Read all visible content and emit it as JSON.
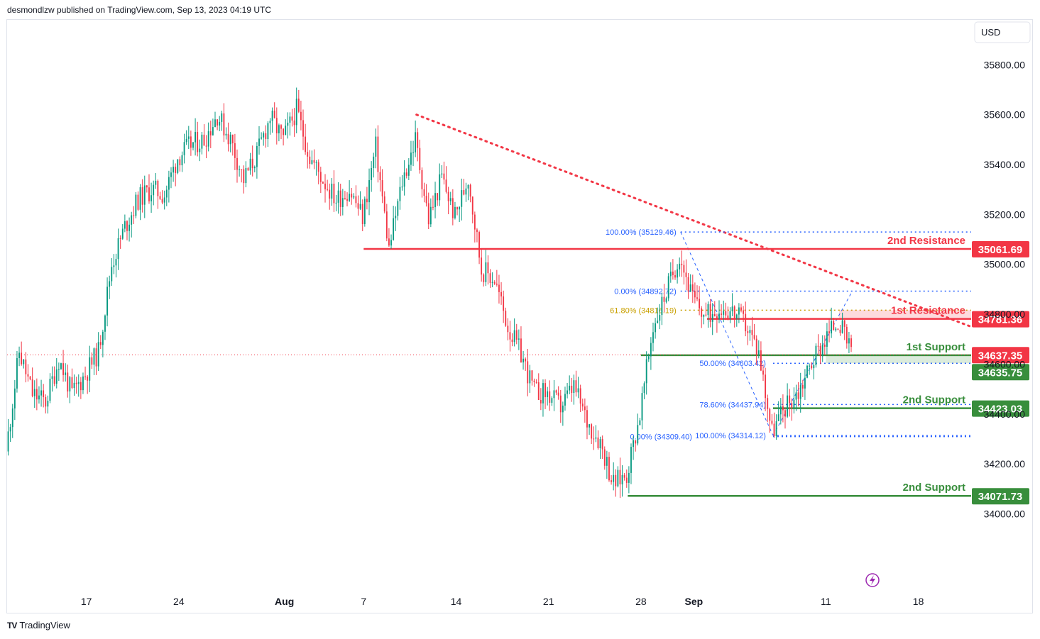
{
  "header": {
    "publisher": "desmondlzw published on TradingView.com, Sep 13, 2023 04:19 UTC"
  },
  "footer": {
    "brand": "TradingView",
    "logo_text": "TV"
  },
  "colors": {
    "up": "#089981",
    "down": "#f23645",
    "resistance": "#f23645",
    "support": "#388e3c",
    "fib": "#2962ff",
    "fib_gold": "#c9a000",
    "trend": "#f23645"
  },
  "icons": {
    "flash": "lightning-bolt-icon",
    "logo": "tradingview-logo-icon"
  },
  "chart_data": {
    "type": "candlestick",
    "currency": "USD",
    "y_range": [
      33700,
      35980
    ],
    "y_ticks": [
      "35800.00",
      "35600.00",
      "35400.00",
      "35200.00",
      "35000.00",
      "34800.00",
      "34600.00",
      "34400.00",
      "34200.00",
      "34000.00"
    ],
    "x_range": [
      "2023-07-11",
      "2023-09-22"
    ],
    "x_ticks": [
      {
        "label": "17",
        "date": "2023-07-17",
        "bold": false
      },
      {
        "label": "24",
        "date": "2023-07-24",
        "bold": false
      },
      {
        "label": "Aug",
        "date": "2023-08-01",
        "bold": true
      },
      {
        "label": "7",
        "date": "2023-08-07",
        "bold": false
      },
      {
        "label": "14",
        "date": "2023-08-14",
        "bold": false
      },
      {
        "label": "21",
        "date": "2023-08-21",
        "bold": false
      },
      {
        "label": "28",
        "date": "2023-08-28",
        "bold": false
      },
      {
        "label": "Sep",
        "date": "2023-09-01",
        "bold": true
      },
      {
        "label": "11",
        "date": "2023-09-11",
        "bold": false
      },
      {
        "label": "18",
        "date": "2023-09-18",
        "bold": false
      }
    ],
    "key_points": [
      [
        "2023-07-11",
        34250
      ],
      [
        "2023-07-12",
        34650
      ],
      [
        "2023-07-13",
        34480
      ],
      [
        "2023-07-14",
        34450
      ],
      [
        "2023-07-15",
        34620
      ],
      [
        "2023-07-16",
        34480
      ],
      [
        "2023-07-17",
        34560
      ],
      [
        "2023-07-18",
        34650
      ],
      [
        "2023-07-19",
        35000
      ],
      [
        "2023-07-20",
        35150
      ],
      [
        "2023-07-21",
        35260
      ],
      [
        "2023-07-22",
        35300
      ],
      [
        "2023-07-23",
        35280
      ],
      [
        "2023-07-24",
        35430
      ],
      [
        "2023-07-25",
        35480
      ],
      [
        "2023-07-26",
        35500
      ],
      [
        "2023-07-27",
        35600
      ],
      [
        "2023-07-28",
        35500
      ],
      [
        "2023-07-29",
        35340
      ],
      [
        "2023-07-30",
        35440
      ],
      [
        "2023-07-31",
        35590
      ],
      [
        "2023-08-01",
        35500
      ],
      [
        "2023-08-02",
        35620
      ],
      [
        "2023-08-03",
        35430
      ],
      [
        "2023-08-04",
        35340
      ],
      [
        "2023-08-05",
        35260
      ],
      [
        "2023-08-06",
        35300
      ],
      [
        "2023-08-07",
        35190
      ],
      [
        "2023-08-08",
        35470
      ],
      [
        "2023-08-09",
        35060
      ],
      [
        "2023-08-10",
        35330
      ],
      [
        "2023-08-11",
        35500
      ],
      [
        "2023-08-12",
        35180
      ],
      [
        "2023-08-13",
        35350
      ],
      [
        "2023-08-14",
        35190
      ],
      [
        "2023-08-15",
        35350
      ],
      [
        "2023-08-16",
        34980
      ],
      [
        "2023-08-17",
        34940
      ],
      [
        "2023-08-18",
        34750
      ],
      [
        "2023-08-19",
        34640
      ],
      [
        "2023-08-20",
        34490
      ],
      [
        "2023-08-21",
        34480
      ],
      [
        "2023-08-22",
        34430
      ],
      [
        "2023-08-23",
        34510
      ],
      [
        "2023-08-24",
        34370
      ],
      [
        "2023-08-25",
        34290
      ],
      [
        "2023-08-26",
        34120
      ],
      [
        "2023-08-27",
        34160
      ],
      [
        "2023-08-28",
        34400
      ],
      [
        "2023-08-29",
        34750
      ],
      [
        "2023-08-30",
        34890
      ],
      [
        "2023-08-31",
        35040
      ],
      [
        "2023-09-01",
        34860
      ],
      [
        "2023-09-02",
        34790
      ],
      [
        "2023-09-03",
        34830
      ],
      [
        "2023-09-04",
        34810
      ],
      [
        "2023-09-05",
        34760
      ],
      [
        "2023-09-06",
        34650
      ],
      [
        "2023-09-07",
        34330
      ],
      [
        "2023-09-08",
        34430
      ],
      [
        "2023-09-09",
        34490
      ],
      [
        "2023-09-10",
        34610
      ],
      [
        "2023-09-11",
        34700
      ],
      [
        "2023-09-12",
        34780
      ],
      [
        "2023-09-13",
        34640
      ]
    ],
    "levels": [
      {
        "label": "2nd Resistance",
        "price": "35061.69",
        "value": 35061.69,
        "kind": "resistance",
        "from": "2023-08-07"
      },
      {
        "label": "1st Resistance",
        "price": "34781.36",
        "value": 34781.36,
        "kind": "resistance",
        "from": "2023-09-02"
      },
      {
        "label": "1st Support",
        "price": "34635.75",
        "value": 34635.75,
        "kind": "support",
        "from": "2023-08-28"
      },
      {
        "label": "2nd Support",
        "price": "34423.03",
        "value": 34423.03,
        "kind": "support",
        "from": "2023-09-07"
      },
      {
        "label": "2nd Support",
        "price": "34071.73",
        "value": 34071.73,
        "kind": "support",
        "from": "2023-08-27"
      }
    ],
    "current_price": {
      "price": "34637.35",
      "value": 34637.35
    },
    "fib_upper": [
      {
        "label": "100.00% (35129.46)",
        "value": 35129.46
      },
      {
        "label": "0.00% (34892.72)",
        "value": 34892.72
      },
      {
        "label": "61.80% (34816.19)",
        "value": 34816.19
      }
    ],
    "fib_lower": [
      {
        "label": "50.00% (34603.42)",
        "value": 34603.42
      },
      {
        "label": "78.60% (34437.94)",
        "value": 34437.94
      },
      {
        "label": "0.00% (34309.40)",
        "value": 34309.4
      },
      {
        "label": "100.00% (34314.12)",
        "value": 34314.12
      }
    ],
    "trendline": {
      "from": [
        "2023-08-11",
        35600
      ],
      "to": [
        "2023-09-22",
        34750
      ]
    }
  }
}
